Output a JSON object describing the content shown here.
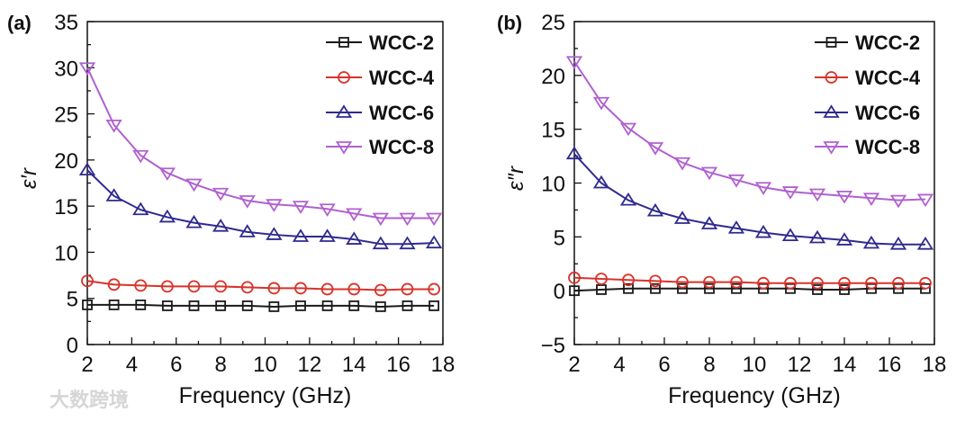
{
  "watermark": "大数跨境",
  "colors": {
    "WCC-2": "#1a1a1a",
    "WCC-4": "#d8332a",
    "WCC-6": "#2f2a8f",
    "WCC-8": "#b060d0"
  },
  "chart_data": [
    {
      "type": "line",
      "panel_label": "(a)",
      "xlabel": "Frequency (GHz)",
      "ylabel": "ε′r",
      "xlim": [
        2,
        18
      ],
      "ylim": [
        0,
        35
      ],
      "xticks": [
        2,
        4,
        6,
        8,
        10,
        12,
        14,
        16,
        18
      ],
      "yticks": [
        0,
        5,
        10,
        15,
        20,
        25,
        30,
        35
      ],
      "legend": "top-right",
      "x": [
        2,
        3.2,
        4.4,
        5.6,
        6.8,
        8,
        9.2,
        10.4,
        11.6,
        12.8,
        14,
        15.2,
        16.4,
        17.6
      ],
      "series": [
        {
          "name": "WCC-2",
          "marker": "square",
          "values": [
            4.3,
            4.3,
            4.3,
            4.2,
            4.2,
            4.2,
            4.2,
            4.1,
            4.2,
            4.2,
            4.2,
            4.1,
            4.2,
            4.2
          ]
        },
        {
          "name": "WCC-4",
          "marker": "circle",
          "values": [
            6.9,
            6.5,
            6.4,
            6.3,
            6.3,
            6.3,
            6.2,
            6.1,
            6.1,
            6.0,
            6.0,
            5.9,
            6.0,
            6.0
          ]
        },
        {
          "name": "WCC-6",
          "marker": "triangle-up",
          "values": [
            18.9,
            16.1,
            14.6,
            13.8,
            13.2,
            12.8,
            12.2,
            11.9,
            11.7,
            11.7,
            11.4,
            10.9,
            10.9,
            11.0
          ]
        },
        {
          "name": "WCC-8",
          "marker": "triangle-down",
          "values": [
            30.0,
            23.8,
            20.5,
            18.6,
            17.4,
            16.4,
            15.6,
            15.2,
            15.0,
            14.7,
            14.2,
            13.7,
            13.7,
            13.7
          ]
        }
      ]
    },
    {
      "type": "line",
      "panel_label": "(b)",
      "xlabel": "Frequency (GHz)",
      "ylabel": "ε″r",
      "xlim": [
        2,
        18
      ],
      "ylim": [
        -5,
        25
      ],
      "xticks": [
        2,
        4,
        6,
        8,
        10,
        12,
        14,
        16,
        18
      ],
      "yticks": [
        -5,
        0,
        5,
        10,
        15,
        20,
        25
      ],
      "legend": "top-right",
      "x": [
        2,
        3.2,
        4.4,
        5.6,
        6.8,
        8,
        9.2,
        10.4,
        11.6,
        12.8,
        14,
        15.2,
        16.4,
        17.6
      ],
      "series": [
        {
          "name": "WCC-2",
          "marker": "square",
          "values": [
            0.0,
            0.1,
            0.2,
            0.2,
            0.2,
            0.2,
            0.2,
            0.2,
            0.2,
            0.1,
            0.1,
            0.2,
            0.2,
            0.2
          ]
        },
        {
          "name": "WCC-4",
          "marker": "circle",
          "values": [
            1.2,
            1.1,
            1.0,
            0.9,
            0.8,
            0.8,
            0.8,
            0.7,
            0.7,
            0.7,
            0.7,
            0.7,
            0.7,
            0.7
          ]
        },
        {
          "name": "WCC-6",
          "marker": "triangle-up",
          "values": [
            12.7,
            10.0,
            8.4,
            7.4,
            6.7,
            6.2,
            5.8,
            5.4,
            5.1,
            4.9,
            4.7,
            4.4,
            4.3,
            4.3
          ]
        },
        {
          "name": "WCC-8",
          "marker": "triangle-down",
          "values": [
            21.3,
            17.5,
            15.1,
            13.3,
            11.9,
            11.0,
            10.3,
            9.6,
            9.2,
            9.0,
            8.8,
            8.6,
            8.4,
            8.5
          ]
        }
      ]
    }
  ]
}
